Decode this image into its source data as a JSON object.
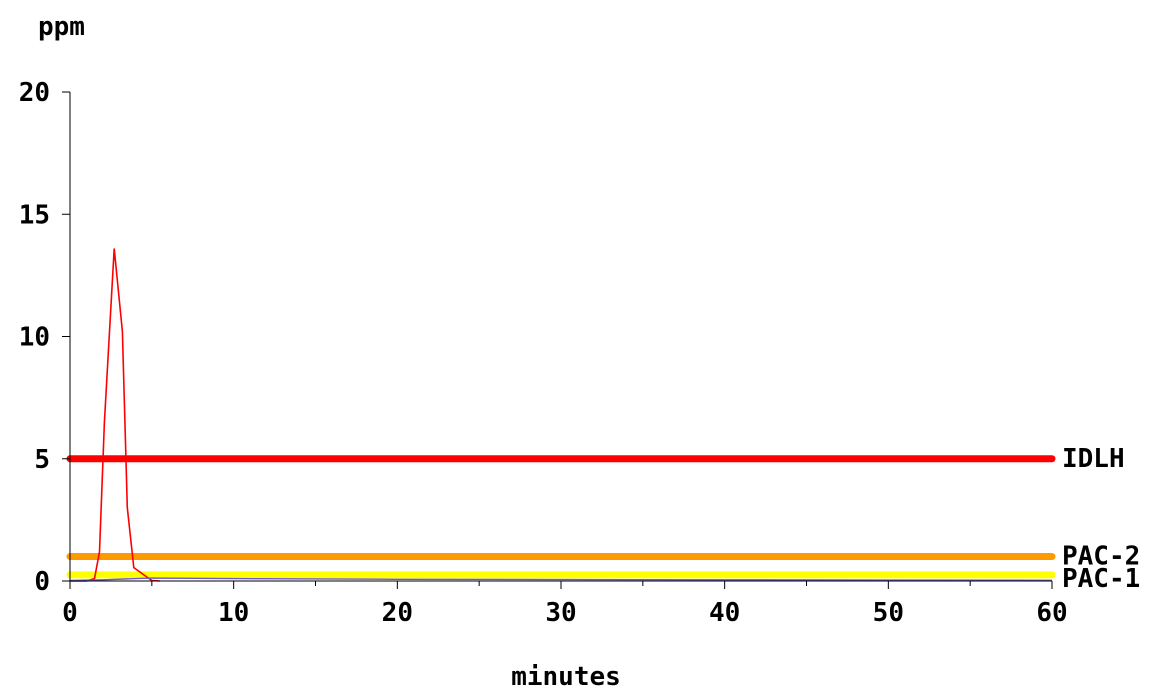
{
  "chart_data": {
    "type": "line",
    "ylabel": "ppm",
    "xlabel": "minutes",
    "xlim": [
      0,
      60
    ],
    "ylim": [
      0,
      20
    ],
    "x_ticks": [
      0,
      10,
      20,
      30,
      40,
      50,
      60
    ],
    "y_ticks": [
      0,
      5,
      10,
      15,
      20
    ],
    "grid": false,
    "reference_lines": [
      {
        "label": "IDLH",
        "value": 5,
        "color": "#ff0000"
      },
      {
        "label": "PAC-2",
        "value": 1,
        "color": "#ff9900"
      },
      {
        "label": "PAC-1",
        "value": 0.25,
        "color": "#ffff00"
      }
    ],
    "series": [
      {
        "color": "#ff0000",
        "x": [
          0,
          1.0,
          1.5,
          1.8,
          2.1,
          2.7,
          3.2,
          3.5,
          3.9,
          4.3,
          5.0,
          5.5
        ],
        "y": [
          0,
          0,
          0.1,
          1.2,
          6.5,
          13.6,
          10.2,
          3.0,
          0.55,
          0.35,
          0.02,
          0
        ]
      },
      {
        "color": "#6a5acd",
        "x": [
          0,
          2,
          4,
          5,
          10,
          20,
          40,
          60
        ],
        "y": [
          0.02,
          0.05,
          0.1,
          0.12,
          0.1,
          0.07,
          0.05,
          0.03
        ]
      }
    ]
  }
}
